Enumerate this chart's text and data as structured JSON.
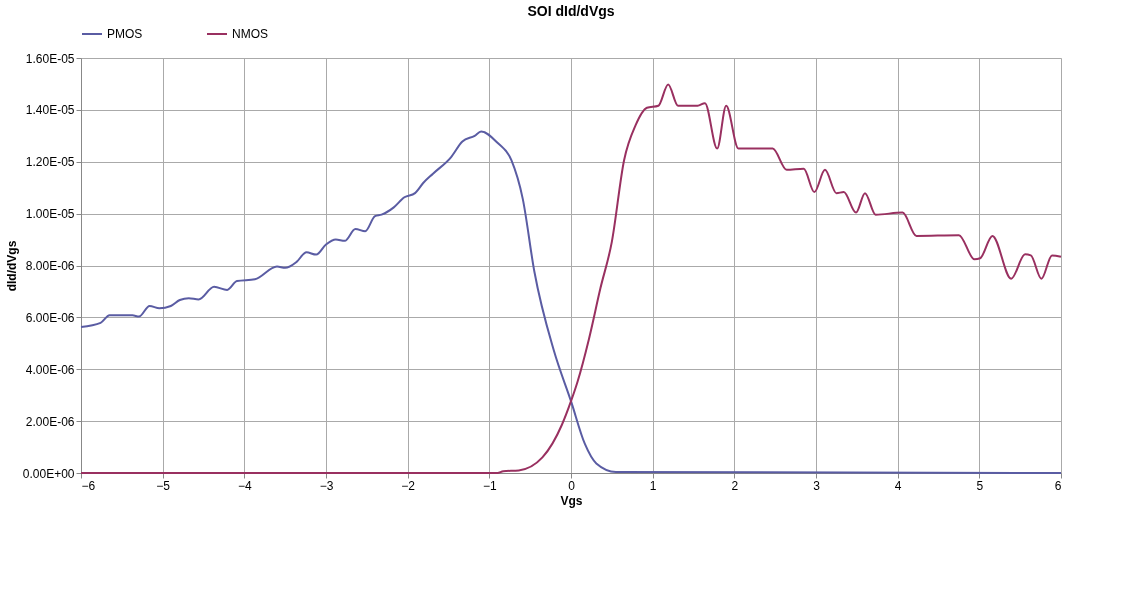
{
  "chart_data": {
    "type": "line",
    "title": "SOI dId/dVgs",
    "xlabel": "Vgs",
    "ylabel": "dId/dVgs",
    "xlim": [
      -6,
      6
    ],
    "xticks": [
      -6,
      -5,
      -4,
      -3,
      -2,
      -1,
      0,
      1,
      2,
      3,
      4,
      5,
      6
    ],
    "ylim": [
      0,
      1.6e-05
    ],
    "yticks": [
      {
        "value": 0,
        "label": "0.00E+00"
      },
      {
        "value": 2e-06,
        "label": "2.00E-06"
      },
      {
        "value": 4e-06,
        "label": "4.00E-06"
      },
      {
        "value": 6e-06,
        "label": "6.00E-06"
      },
      {
        "value": 8e-06,
        "label": "8.00E-06"
      },
      {
        "value": 1e-05,
        "label": "1.00E-05"
      },
      {
        "value": 1.2e-05,
        "label": "1.20E-05"
      },
      {
        "value": 1.4e-05,
        "label": "1.40E-05"
      },
      {
        "value": 1.6e-05,
        "label": "1.60E-05"
      }
    ],
    "grid": true,
    "legend": "top",
    "marker": "none",
    "line_style": "solid",
    "series": [
      {
        "name": "PMOS",
        "color": "#5a5ca3",
        "x": [
          -6,
          -5.76,
          -5.65,
          -5.37,
          -5.29,
          -5.16,
          -5.04,
          -4.9,
          -4.79,
          -4.68,
          -4.56,
          -4.37,
          -4.21,
          -4.09,
          -3.87,
          -3.6,
          -3.5,
          -3.36,
          -3.24,
          -3.12,
          -3.0,
          -2.88,
          -2.77,
          -2.64,
          -2.52,
          -2.4,
          -2.32,
          -2.17,
          -2.04,
          -1.91,
          -1.81,
          -1.69,
          -1.47,
          -1.33,
          -1.18,
          -1.1,
          -0.9,
          -0.73,
          -0.59,
          -0.45,
          -0.21,
          0,
          0.17,
          0.31,
          0.55,
          6
        ],
        "values": [
          5.63e-06,
          5.79e-06,
          6.08e-06,
          6.08e-06,
          6.03e-06,
          6.44e-06,
          6.35e-06,
          6.44e-06,
          6.67e-06,
          6.74e-06,
          6.69e-06,
          7.18e-06,
          7.06e-06,
          7.4e-06,
          7.47e-06,
          7.96e-06,
          7.91e-06,
          8.14e-06,
          8.51e-06,
          8.42e-06,
          8.81e-06,
          9e-06,
          8.95e-06,
          9.41e-06,
          9.32e-06,
          9.9e-06,
          9.96e-06,
          1.024e-05,
          1.063e-05,
          1.079e-05,
          1.118e-05,
          1.154e-05,
          1.217e-05,
          1.278e-05,
          1.3e-05,
          1.317e-05,
          1.273e-05,
          1.206e-05,
          1.056e-05,
          7.79e-06,
          4.72e-06,
          2.77e-06,
          1.12e-06,
          3.7e-07,
          4e-08,
          0
        ]
      },
      {
        "name": "NMOS",
        "color": "#993060",
        "x": [
          -6,
          -0.9,
          -0.83,
          -0.64,
          -0.35,
          -0.11,
          0,
          0.08,
          0.22,
          0.36,
          0.5,
          0.65,
          0.79,
          0.93,
          1.07,
          1.19,
          1.31,
          1.55,
          1.64,
          1.79,
          1.9,
          2.05,
          2.17,
          2.47,
          2.64,
          2.85,
          2.98,
          3.11,
          3.25,
          3.34,
          3.49,
          3.6,
          3.73,
          4.06,
          4.23,
          4.75,
          4.94,
          5.01,
          5.16,
          5.39,
          5.56,
          5.63,
          5.76,
          5.89,
          6.0
        ],
        "values": [
          0,
          0,
          7e-08,
          1e-07,
          6e-07,
          1.87e-06,
          2.77e-06,
          3.52e-06,
          5.17e-06,
          7.12e-06,
          8.91e-06,
          1.206e-05,
          1.34e-05,
          1.408e-05,
          1.416e-05,
          1.498e-05,
          1.416e-05,
          1.416e-05,
          1.426e-05,
          1.251e-05,
          1.416e-05,
          1.251e-05,
          1.251e-05,
          1.251e-05,
          1.169e-05,
          1.173e-05,
          1.083e-05,
          1.169e-05,
          1.079e-05,
          1.083e-05,
          1.004e-05,
          1.079e-05,
          9.96e-06,
          1.004e-05,
          9.14e-06,
          9.17e-06,
          8.24e-06,
          8.28e-06,
          9.14e-06,
          7.49e-06,
          8.43e-06,
          8.39e-06,
          7.49e-06,
          8.39e-06,
          8.34e-06
        ]
      }
    ]
  }
}
